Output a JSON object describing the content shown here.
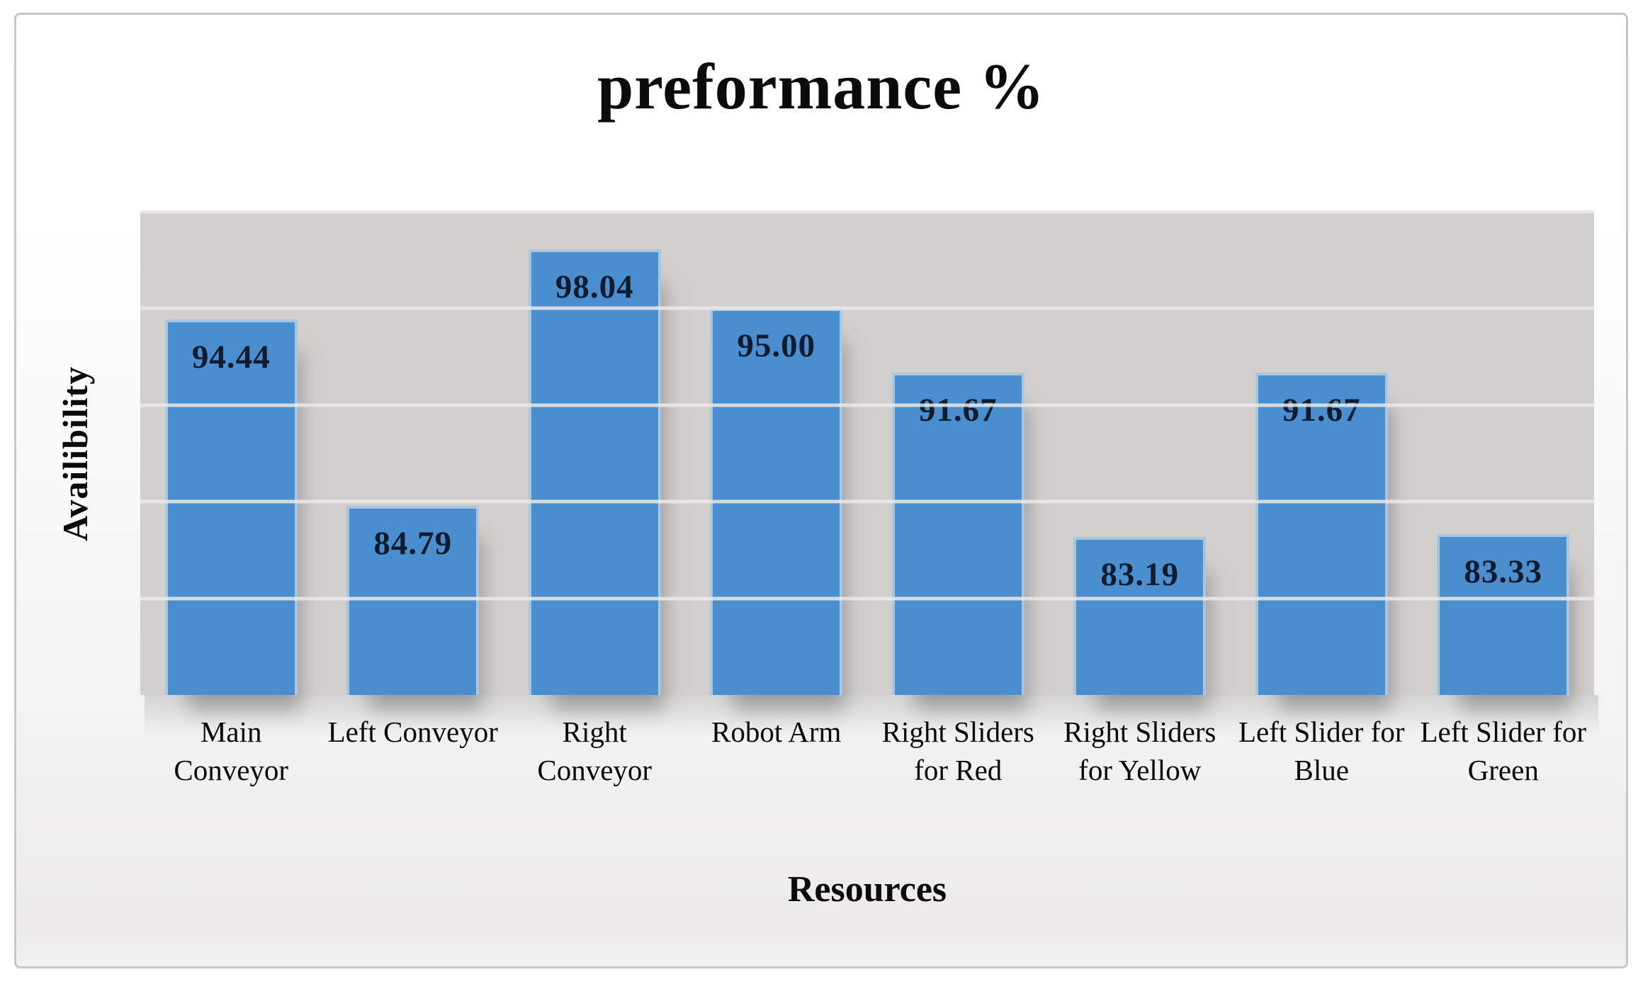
{
  "figure": {
    "title": "preformance %",
    "y_axis_title": "Availibility",
    "x_axis_title": "Resources"
  },
  "chart_data": {
    "type": "bar",
    "title": "preformance %",
    "xlabel": "Resources",
    "ylabel": "Availibility",
    "categories": [
      "Main Conveyor",
      "Left Conveyor",
      "Right Conveyor",
      "Robot Arm",
      "Right Sliders for Red",
      "Right Sliders for Yellow",
      "Left Slider for Blue",
      "Left Slider for Green"
    ],
    "values": [
      94.44,
      84.79,
      98.04,
      95.0,
      91.67,
      83.19,
      91.67,
      83.33
    ],
    "data_labels": [
      "94.44",
      "84.79",
      "98.04",
      "95.00",
      "91.67",
      "83.19",
      "91.67",
      "83.33"
    ],
    "ylim": [
      75,
      100
    ],
    "gridline_interval": 5,
    "grid": true,
    "legend_position": "none",
    "y_tick_labels_visible": false,
    "colors": {
      "bar_fill": "#4a8ecf",
      "bar_border": "#aac6de",
      "plot_background": "#d2cfcf",
      "gridline": "#ebe9e9",
      "data_label_text": "#101c2e",
      "text": "#0b0b0b",
      "frame_border": "#c7c7c7"
    }
  }
}
